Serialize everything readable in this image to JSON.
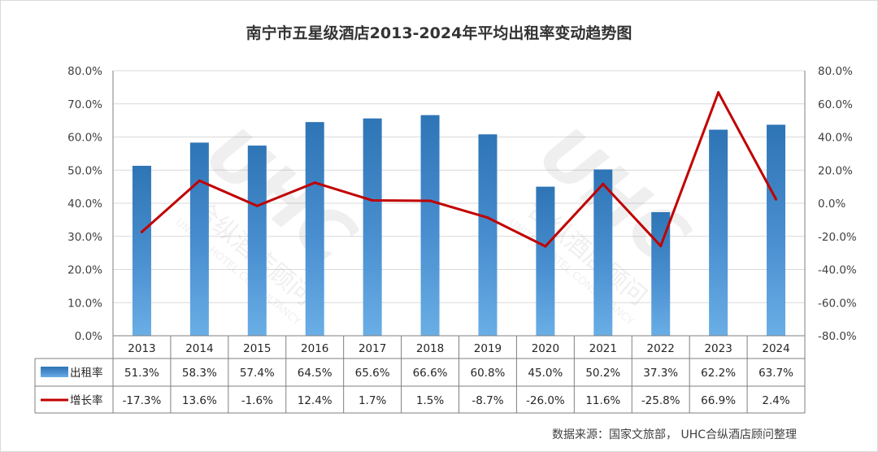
{
  "chart_data": {
    "type": "bar",
    "title": "南宁市五星级酒店2013-2024年平均出租率变动趋势图",
    "categories": [
      "2013",
      "2014",
      "2015",
      "2016",
      "2017",
      "2018",
      "2019",
      "2020",
      "2021",
      "2022",
      "2023",
      "2024"
    ],
    "series": [
      {
        "name": "出租率",
        "type": "bar",
        "axis": "left",
        "values": [
          51.3,
          58.3,
          57.4,
          64.5,
          65.6,
          66.6,
          60.8,
          45.0,
          50.2,
          37.3,
          62.2,
          63.7
        ],
        "labels": [
          "51.3%",
          "58.3%",
          "57.4%",
          "64.5%",
          "65.6%",
          "66.6%",
          "60.8%",
          "45.0%",
          "50.2%",
          "37.3%",
          "62.2%",
          "63.7%"
        ]
      },
      {
        "name": "增长率",
        "type": "line",
        "axis": "right",
        "values": [
          -17.3,
          13.6,
          -1.6,
          12.4,
          1.7,
          1.5,
          -8.7,
          -26.0,
          11.6,
          -25.8,
          66.9,
          2.4
        ],
        "labels": [
          "-17.3%",
          "13.6%",
          "-1.6%",
          "12.4%",
          "1.7%",
          "1.5%",
          "-8.7%",
          "-26.0%",
          "11.6%",
          "-25.8%",
          "66.9%",
          "2.4%"
        ]
      }
    ],
    "y_left": {
      "range": [
        0,
        80
      ],
      "ticks": [
        "0.0%",
        "10.0%",
        "20.0%",
        "30.0%",
        "40.0%",
        "50.0%",
        "60.0%",
        "70.0%",
        "80.0%"
      ]
    },
    "y_right": {
      "range": [
        -80,
        80
      ],
      "ticks": [
        "-80.0%",
        "-60.0%",
        "-40.0%",
        "-20.0%",
        "0.0%",
        "20.0%",
        "40.0%",
        "60.0%",
        "80.0%"
      ]
    },
    "grid": true,
    "legend": "data-table",
    "colors": {
      "bar": "#2e75b6",
      "bar_light": "#5b9bd5",
      "line": "#c00000"
    },
    "source": "数据来源：国家文旅部， UHC合纵酒店顾问整理",
    "watermark_text": [
      "UHC",
      "合纵酒店顾问",
      "UNITED HOTEL CONSULTANCY"
    ]
  }
}
